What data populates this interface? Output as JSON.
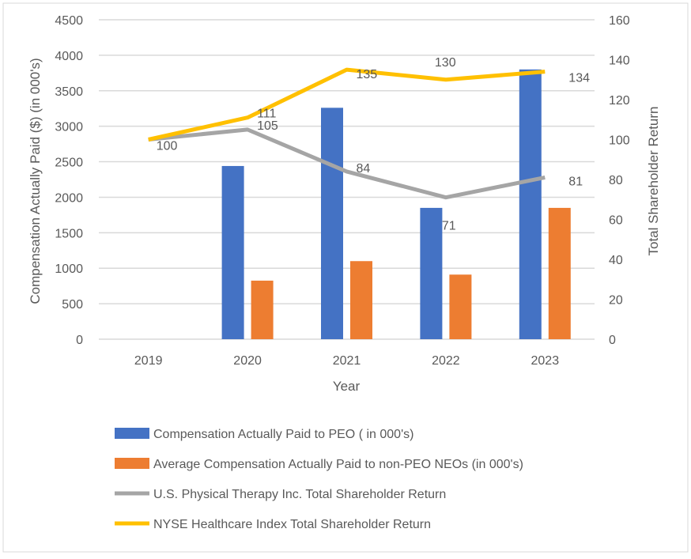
{
  "chart_data": {
    "type": "bar+line",
    "xlabel": "Year",
    "ylabel": "Compensation Actually Paid ($) (in 000's)",
    "y2label": "Total Shareholder Return",
    "categories": [
      "2019",
      "2020",
      "2021",
      "2022",
      "2023"
    ],
    "ylim": [
      0,
      4500
    ],
    "yticks": [
      0,
      500,
      1000,
      1500,
      2000,
      2500,
      3000,
      3500,
      4000,
      4500
    ],
    "y2lim": [
      0,
      160
    ],
    "y2ticks": [
      0,
      20,
      40,
      60,
      80,
      100,
      120,
      140,
      160
    ],
    "grid": true,
    "legend_position": "bottom",
    "series": [
      {
        "name": "Compensation Actually Paid to PEO ( in 000's)",
        "type": "bar",
        "axis": "left",
        "color": "#4472C4",
        "values": [
          null,
          2440,
          3260,
          1850,
          3800
        ]
      },
      {
        "name": "Average Compensation Actually Paid to non-PEO NEOs  (in 000's)",
        "type": "bar",
        "axis": "left",
        "color": "#ED7D31",
        "values": [
          null,
          825,
          1100,
          910,
          1850
        ]
      },
      {
        "name": "U.S. Physical Therapy Inc. Total Shareholder Return",
        "type": "line",
        "axis": "right",
        "color": "#A5A5A5",
        "values": [
          100,
          105,
          84,
          71,
          81
        ],
        "labels": [
          "100",
          "105",
          "84",
          "71",
          "81"
        ]
      },
      {
        "name": "NYSE Healthcare Index Total Shareholder Return",
        "type": "line",
        "axis": "right",
        "color": "#FFC000",
        "values": [
          100,
          111,
          135,
          130,
          134
        ],
        "labels": [
          "",
          "111",
          "135",
          "130",
          "134"
        ]
      }
    ]
  }
}
